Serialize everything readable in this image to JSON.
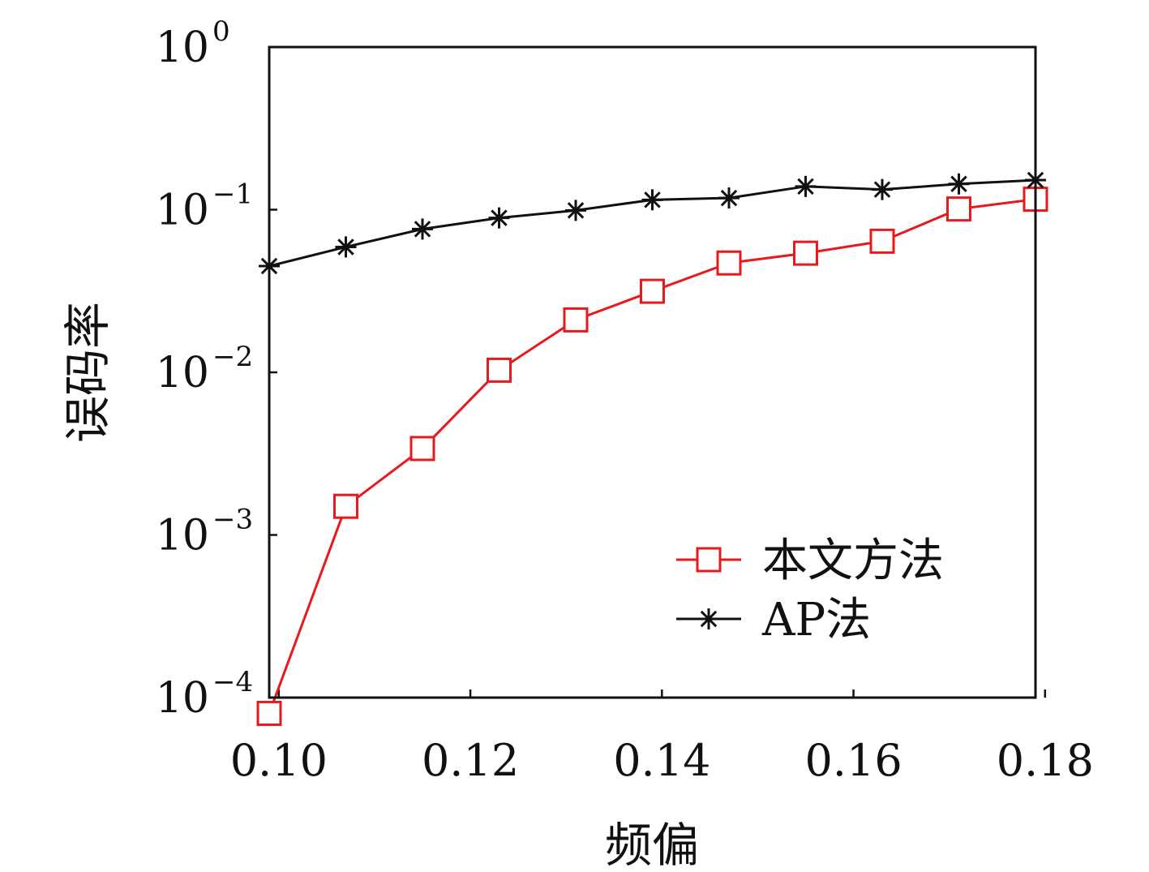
{
  "chart_data": {
    "type": "line",
    "title": "",
    "xlabel": "频偏",
    "ylabel": "误码率",
    "xlim": [
      0.099,
      0.179
    ],
    "ylim": [
      0.0001,
      1
    ],
    "yscale": "log",
    "grid": false,
    "legend_position": "lower-right",
    "x_ticks": [
      0.1,
      0.12,
      0.14,
      0.16,
      0.18
    ],
    "x_tick_labels": [
      "0.10",
      "0.12",
      "0.14",
      "0.16",
      "0.18"
    ],
    "y_tick_labels": [
      {
        "value": 1,
        "base": "10",
        "exp": "0"
      },
      {
        "value": 0.1,
        "base": "10",
        "exp": "−1"
      },
      {
        "value": 0.01,
        "base": "10",
        "exp": "−2"
      },
      {
        "value": 0.001,
        "base": "10",
        "exp": "−3"
      },
      {
        "value": 0.0001,
        "base": "10",
        "exp": "−4"
      }
    ],
    "x": [
      0.099,
      0.107,
      0.115,
      0.123,
      0.131,
      0.139,
      0.147,
      0.155,
      0.163,
      0.171,
      0.179
    ],
    "series": [
      {
        "name": "本文方法",
        "color": "#e8191c",
        "marker": "square",
        "values": [
          8e-05,
          0.0015,
          0.0034,
          0.0103,
          0.021,
          0.0315,
          0.047,
          0.054,
          0.064,
          0.101,
          0.116
        ]
      },
      {
        "name": "AP法",
        "color": "#111111",
        "marker": "asterisk",
        "values": [
          0.045,
          0.059,
          0.076,
          0.089,
          0.099,
          0.115,
          0.118,
          0.139,
          0.133,
          0.144,
          0.152
        ]
      }
    ]
  }
}
